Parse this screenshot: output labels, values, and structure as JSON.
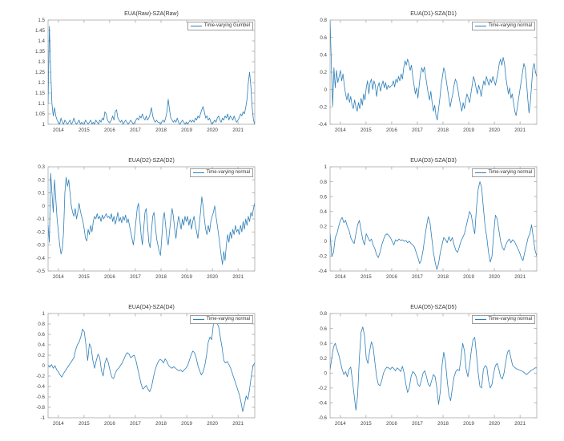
{
  "figure": {
    "background": "#ffffff",
    "line_color": "#2d7fb8",
    "axis_color": "#a8a8a8",
    "tick_color": "#404040",
    "title_color": "#383838"
  },
  "chart_data": [
    {
      "type": "line",
      "title": "EUA(Raw)-SZA(Raw)",
      "legend_position": "northeast",
      "grid": false,
      "xlim": [
        2013.6,
        2021.65
      ],
      "ylim": [
        1,
        1.5
      ],
      "xticks": [
        2014,
        2015,
        2016,
        2017,
        2018,
        2019,
        2020,
        2021
      ],
      "yticks": [
        1,
        1.05,
        1.1,
        1.15,
        1.2,
        1.25,
        1.3,
        1.35,
        1.4,
        1.45,
        1.5
      ],
      "series": [
        {
          "name": "Time-varying Gumbel",
          "color": "#2d7fb8",
          "values": [
            1.1,
            1.47,
            1.26,
            1.1,
            1.04,
            1.08,
            1.04,
            1.02,
            1.01,
            1.0,
            1.03,
            1.01,
            1.0,
            1.02,
            1.01,
            1.0,
            1.01,
            1.02,
            1.0,
            1.01,
            1.03,
            1.01,
            1.0,
            1.01,
            1.02,
            1.0,
            1.01,
            1.0,
            1.0,
            1.02,
            1.01,
            1.0,
            1.01,
            1.02,
            1.0,
            1.01,
            1.0,
            1.02,
            1.01,
            1.0,
            1.02,
            1.01,
            1.03,
            1.02,
            1.06,
            1.05,
            1.02,
            1.01,
            1.01,
            1.02,
            1.04,
            1.02,
            1.06,
            1.07,
            1.03,
            1.02,
            1.01,
            1.02,
            1.0,
            1.01,
            1.02,
            1.01,
            1.0,
            1.01,
            1.02,
            1.01,
            1.0,
            1.01,
            1.02,
            1.03,
            1.02,
            1.04,
            1.03,
            1.05,
            1.03,
            1.02,
            1.04,
            1.02,
            1.03,
            1.05,
            1.08,
            1.04,
            1.02,
            1.01,
            1.02,
            1.01,
            1.01,
            1.0,
            1.01,
            1.02,
            1.01,
            1.03,
            1.06,
            1.12,
            1.07,
            1.03,
            1.02,
            1.01,
            1.02,
            1.01,
            1.03,
            1.01,
            1.0,
            1.01,
            1.02,
            1.01,
            1.0,
            1.01,
            1.0,
            1.01,
            1.02,
            1.01,
            1.02,
            1.01,
            1.03,
            1.02,
            1.04,
            1.03,
            1.05,
            1.07,
            1.085,
            1.06,
            1.03,
            1.04,
            1.02,
            1.03,
            1.01,
            1.0,
            1.01,
            1.02,
            1.01,
            1.03,
            1.04,
            1.02,
            1.01,
            1.03,
            1.02,
            1.04,
            1.03,
            1.05,
            1.02,
            1.04,
            1.03,
            1.02,
            1.04,
            1.02,
            1.01,
            1.02,
            1.03,
            1.05,
            1.04,
            1.06,
            1.05,
            1.08,
            1.12,
            1.2,
            1.25,
            1.18,
            1.08,
            1.02,
            1.0
          ]
        }
      ]
    },
    {
      "type": "line",
      "title": "EUA(D1)-SZA(D1)",
      "legend_position": "northeast",
      "grid": false,
      "xlim": [
        2013.6,
        2021.65
      ],
      "ylim": [
        -0.4,
        0.8
      ],
      "xticks": [
        2014,
        2015,
        2016,
        2017,
        2018,
        2019,
        2020,
        2021
      ],
      "yticks": [
        -0.4,
        -0.2,
        0,
        0.2,
        0.4,
        0.6,
        0.8
      ],
      "series": [
        {
          "name": "Time-varying normal",
          "color": "#2d7fb8",
          "values": [
            0.79,
            0.3,
            -0.19,
            0.25,
            0.02,
            0.22,
            0.08,
            0.15,
            0.22,
            0.1,
            0.18,
            0.05,
            -0.05,
            -0.12,
            -0.04,
            -0.15,
            -0.08,
            -0.18,
            -0.22,
            -0.12,
            -0.2,
            -0.25,
            -0.15,
            -0.22,
            -0.1,
            -0.18,
            -0.05,
            -0.12,
            0.02,
            0.1,
            -0.05,
            0.08,
            0.12,
            0.0,
            0.1,
            0.05,
            -0.08,
            0.03,
            0.08,
            -0.02,
            0.05,
            0.1,
            0.02,
            0.08,
            0.0,
            0.05,
            0.02,
            0.04,
            0.05,
            0.1,
            0.03,
            0.12,
            0.08,
            0.15,
            0.1,
            0.18,
            0.12,
            0.25,
            0.33,
            0.28,
            0.35,
            0.3,
            0.22,
            0.28,
            0.15,
            0.05,
            -0.05,
            0.02,
            -0.1,
            0.05,
            0.18,
            0.25,
            0.2,
            0.26,
            0.15,
            0.05,
            -0.05,
            -0.12,
            -0.02,
            -0.15,
            -0.25,
            -0.18,
            -0.3,
            -0.35,
            -0.22,
            -0.1,
            0.05,
            0.15,
            0.25,
            0.2,
            0.1,
            0.0,
            -0.1,
            -0.2,
            -0.12,
            -0.05,
            0.05,
            0.12,
            0.08,
            0.0,
            -0.1,
            -0.18,
            -0.25,
            -0.15,
            -0.22,
            -0.12,
            -0.05,
            -0.1,
            -0.15,
            -0.05,
            0.05,
            0.15,
            0.1,
            0.02,
            -0.05,
            0.05,
            0.0,
            -0.08,
            0.02,
            0.1,
            0.05,
            0.15,
            0.1,
            0.05,
            0.12,
            0.08,
            0.15,
            0.1,
            0.05,
            0.12,
            0.2,
            0.3,
            0.35,
            0.28,
            0.37,
            0.3,
            0.15,
            0.05,
            -0.05,
            0.02,
            -0.1,
            -0.05,
            -0.15,
            -0.25,
            -0.3,
            -0.2,
            -0.1,
            0.0,
            0.1,
            0.2,
            0.3,
            0.25,
            0.1,
            -0.1,
            -0.27,
            -0.15,
            0.05,
            0.25,
            0.3,
            0.2,
            0.15
          ]
        }
      ]
    },
    {
      "type": "line",
      "title": "EUA(D2)-SZA(D2)",
      "legend_position": "northeast",
      "grid": false,
      "xlim": [
        2013.6,
        2021.65
      ],
      "ylim": [
        -0.5,
        0.3
      ],
      "xticks": [
        2014,
        2015,
        2016,
        2017,
        2018,
        2019,
        2020,
        2021
      ],
      "yticks": [
        -0.5,
        -0.4,
        -0.3,
        -0.2,
        -0.1,
        0,
        0.1,
        0.2,
        0.3
      ],
      "series": [
        {
          "name": "Time-varying normal",
          "color": "#2d7fb8",
          "values": [
            -0.15,
            -0.28,
            0.25,
            0.1,
            -0.05,
            0.2,
            0.05,
            -0.1,
            -0.2,
            -0.3,
            -0.37,
            -0.33,
            -0.2,
            0.1,
            0.22,
            0.15,
            0.2,
            0.1,
            0.0,
            -0.05,
            -0.08,
            -0.02,
            -0.1,
            -0.05,
            0.02,
            -0.04,
            -0.08,
            -0.12,
            -0.18,
            -0.25,
            -0.27,
            -0.18,
            -0.22,
            -0.15,
            -0.2,
            -0.12,
            -0.08,
            -0.1,
            -0.06,
            -0.1,
            -0.08,
            -0.12,
            -0.07,
            -0.1,
            -0.08,
            -0.06,
            -0.09,
            -0.08,
            -0.1,
            -0.06,
            -0.12,
            -0.08,
            -0.14,
            -0.1,
            -0.05,
            -0.12,
            -0.09,
            -0.13,
            -0.08,
            -0.11,
            -0.07,
            -0.13,
            -0.1,
            -0.15,
            -0.2,
            -0.25,
            -0.3,
            -0.22,
            -0.12,
            -0.02,
            0.02,
            -0.1,
            -0.22,
            -0.3,
            -0.18,
            -0.05,
            -0.02,
            -0.15,
            -0.28,
            -0.32,
            -0.2,
            -0.08,
            -0.05,
            -0.15,
            -0.25,
            -0.3,
            -0.35,
            -0.38,
            -0.25,
            -0.1,
            -0.05,
            -0.15,
            -0.25,
            -0.3,
            -0.2,
            -0.1,
            -0.02,
            -0.08,
            -0.18,
            -0.25,
            -0.15,
            -0.08,
            -0.12,
            -0.18,
            -0.1,
            -0.15,
            -0.08,
            -0.12,
            -0.08,
            -0.15,
            -0.1,
            -0.18,
            -0.12,
            -0.08,
            -0.15,
            -0.2,
            -0.25,
            -0.15,
            -0.05,
            0.07,
            0.0,
            -0.1,
            -0.18,
            -0.22,
            -0.15,
            -0.2,
            -0.12,
            -0.08,
            -0.05,
            0.0,
            -0.08,
            -0.15,
            -0.22,
            -0.3,
            -0.38,
            -0.45,
            -0.35,
            -0.42,
            -0.3,
            -0.22,
            -0.28,
            -0.2,
            -0.25,
            -0.18,
            -0.22,
            -0.15,
            -0.2,
            -0.18,
            -0.22,
            -0.15,
            -0.2,
            -0.12,
            -0.18,
            -0.1,
            -0.15,
            -0.08,
            -0.12,
            -0.05,
            -0.08,
            -0.02,
            0.02
          ]
        }
      ]
    },
    {
      "type": "line",
      "title": "EUA(D3)-SZA(D3)",
      "legend_position": "northeast",
      "grid": false,
      "xlim": [
        2013.6,
        2021.65
      ],
      "ylim": [
        -0.4,
        1
      ],
      "xticks": [
        2014,
        2015,
        2016,
        2017,
        2018,
        2019,
        2020,
        2021
      ],
      "yticks": [
        -0.4,
        -0.2,
        0,
        0.2,
        0.4,
        0.6,
        0.8,
        1
      ],
      "series": [
        {
          "name": "Time-varying normal",
          "color": "#2d7fb8",
          "values": [
            0.1,
            -0.2,
            -0.15,
            0.05,
            0.1,
            0.2,
            0.28,
            0.32,
            0.25,
            0.28,
            0.2,
            0.15,
            0.05,
            0.0,
            -0.03,
            0.1,
            0.22,
            0.28,
            0.15,
            0.02,
            -0.05,
            0.1,
            0.05,
            0.0,
            0.03,
            -0.05,
            -0.1,
            -0.18,
            -0.22,
            -0.15,
            -0.05,
            0.02,
            0.08,
            0.1,
            0.08,
            0.05,
            0.0,
            -0.05,
            0.02,
            0.0,
            0.03,
            0.01,
            0.02,
            0.0,
            0.01,
            -0.02,
            0.0,
            -0.03,
            -0.05,
            -0.08,
            -0.15,
            -0.22,
            -0.3,
            -0.25,
            -0.12,
            0.05,
            0.2,
            0.33,
            0.25,
            0.05,
            -0.15,
            -0.28,
            -0.38,
            -0.3,
            -0.15,
            -0.05,
            0.05,
            0.02,
            -0.02,
            0.06,
            0.0,
            0.05,
            -0.05,
            -0.12,
            -0.15,
            -0.08,
            0.0,
            0.05,
            0.1,
            0.2,
            0.3,
            0.4,
            0.35,
            0.2,
            0.1,
            0.45,
            0.7,
            0.8,
            0.72,
            0.45,
            0.2,
            0.05,
            -0.15,
            -0.28,
            -0.2,
            0.1,
            0.35,
            0.3,
            0.15,
            0.0,
            -0.08,
            -0.12,
            -0.05,
            0.0,
            0.03,
            -0.02,
            0.02,
            0.0,
            -0.05,
            -0.1,
            -0.15,
            -0.22,
            -0.26,
            -0.15,
            -0.05,
            0.05,
            0.1,
            0.22,
            0.05,
            -0.12,
            -0.2
          ]
        }
      ]
    },
    {
      "type": "line",
      "title": "EUA(D4)-SZA(D4)",
      "legend_position": "northeast",
      "grid": false,
      "xlim": [
        2013.6,
        2021.65
      ],
      "ylim": [
        -1,
        1
      ],
      "xticks": [
        2014,
        2015,
        2016,
        2017,
        2018,
        2019,
        2020,
        2021
      ],
      "yticks": [
        -1,
        -0.8,
        -0.6,
        -0.4,
        -0.2,
        0,
        0.2,
        0.4,
        0.6,
        0.8,
        1
      ],
      "series": [
        {
          "name": "Time-varying normal",
          "color": "#2d7fb8",
          "values": [
            0.0,
            -0.03,
            0.02,
            -0.05,
            0.0,
            -0.08,
            -0.12,
            -0.18,
            -0.22,
            -0.15,
            -0.1,
            -0.05,
            0.0,
            0.05,
            0.1,
            0.15,
            0.3,
            0.4,
            0.45,
            0.55,
            0.7,
            0.65,
            0.4,
            0.1,
            0.42,
            0.35,
            0.1,
            -0.05,
            0.1,
            0.22,
            0.15,
            -0.1,
            -0.2,
            0.05,
            0.15,
            0.05,
            -0.1,
            -0.22,
            -0.25,
            -0.15,
            -0.08,
            -0.05,
            0.0,
            0.05,
            0.12,
            0.2,
            0.25,
            0.22,
            0.15,
            0.18,
            0.2,
            0.1,
            -0.05,
            -0.2,
            -0.35,
            -0.45,
            -0.42,
            -0.38,
            -0.45,
            -0.5,
            -0.42,
            -0.25,
            -0.1,
            0.0,
            0.08,
            0.12,
            0.1,
            0.05,
            0.13,
            0.08,
            0.0,
            -0.03,
            -0.05,
            -0.02,
            -0.05,
            -0.08,
            -0.1,
            -0.08,
            -0.12,
            -0.08,
            -0.05,
            0.0,
            0.1,
            0.2,
            0.28,
            0.25,
            0.15,
            0.0,
            -0.1,
            -0.18,
            -0.12,
            0.0,
            0.2,
            0.45,
            0.55,
            0.5,
            0.8,
            0.85,
            0.82,
            0.75,
            0.55,
            0.35,
            0.1,
            0.05,
            0.08,
            0.02,
            -0.05,
            -0.15,
            -0.25,
            -0.35,
            -0.45,
            -0.55,
            -0.7,
            -0.88,
            -0.75,
            -0.58,
            -0.65,
            -0.45,
            -0.2,
            0.0,
            0.05
          ]
        }
      ]
    },
    {
      "type": "line",
      "title": "EUA(D5)-SZA(D5)",
      "legend_position": "northeast",
      "grid": false,
      "xlim": [
        2013.6,
        2021.65
      ],
      "ylim": [
        -0.6,
        0.8
      ],
      "xticks": [
        2014,
        2015,
        2016,
        2017,
        2018,
        2019,
        2020,
        2021
      ],
      "yticks": [
        -0.6,
        -0.4,
        -0.2,
        0,
        0.2,
        0.4,
        0.6,
        0.8
      ],
      "series": [
        {
          "name": "Time-varying normal",
          "color": "#2d7fb8",
          "values": [
            0.05,
            0.2,
            0.35,
            0.4,
            0.32,
            0.25,
            0.15,
            0.05,
            -0.02,
            0.02,
            -0.05,
            0.05,
            0.08,
            -0.1,
            -0.3,
            -0.5,
            -0.3,
            0.2,
            0.55,
            0.62,
            0.5,
            0.2,
            0.13,
            0.3,
            0.42,
            0.35,
            0.15,
            -0.05,
            -0.15,
            -0.17,
            -0.1,
            0.0,
            0.05,
            0.08,
            0.07,
            0.05,
            0.08,
            0.06,
            0.03,
            0.07,
            0.05,
            0.02,
            0.09,
            0.0,
            -0.15,
            -0.26,
            -0.2,
            -0.05,
            0.02,
            0.0,
            -0.05,
            -0.15,
            -0.18,
            -0.1,
            0.0,
            0.03,
            -0.05,
            -0.15,
            -0.18,
            -0.1,
            -0.02,
            -0.05,
            -0.2,
            -0.42,
            -0.25,
            0.1,
            0.28,
            0.15,
            -0.1,
            -0.3,
            -0.37,
            -0.2,
            -0.05,
            0.02,
            0.05,
            0.03,
            0.2,
            0.4,
            0.3,
            0.05,
            -0.05,
            0.1,
            0.3,
            0.45,
            0.48,
            0.25,
            0.0,
            -0.18,
            -0.2,
            0.05,
            0.1,
            0.08,
            -0.1,
            -0.2,
            -0.15,
            0.0,
            0.1,
            0.13,
            0.05,
            -0.05,
            -0.08,
            0.0,
            0.15,
            0.28,
            0.31,
            0.2,
            0.1,
            0.08,
            0.06,
            0.05,
            0.04,
            0.03,
            0.02,
            0.0,
            -0.02,
            0.0,
            0.02,
            0.04,
            0.05,
            0.07,
            0.07
          ]
        }
      ]
    }
  ]
}
